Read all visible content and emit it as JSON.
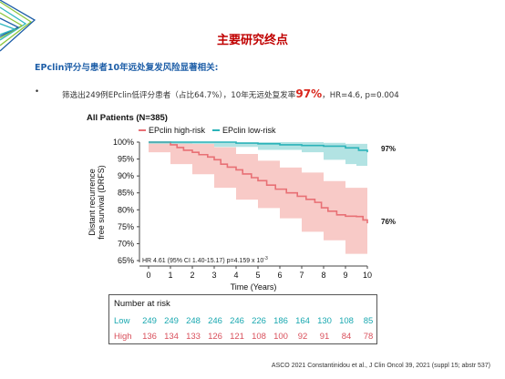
{
  "slide": {
    "title": "主要研究终点",
    "subtitle": "EPclin评分与患者10年远处复发风险显著相关:",
    "bullet": {
      "marker": "•",
      "text_pre": "筛选出249例EPclin低评分患者（占比64.7%），10年无远处复发率",
      "highlight": "97%",
      "text_post": "，HR=4.6, p=0.004"
    },
    "footer": "ASCO 2021 Constantinidou et al., J Clin Oncol 39, 2021 (suppl 15; abstr 537)"
  },
  "colors": {
    "title": "#c00000",
    "subtitle": "#1f5fa8",
    "high": "#e87075",
    "high_ci": "#f6b8b4",
    "low": "#2bb3b9",
    "low_ci": "#9fdcdc"
  },
  "chart_data": {
    "type": "line",
    "title": "All Patients (N=385)",
    "xlabel": "Time (Years)",
    "ylabel_line1": "Distant recurrence",
    "ylabel_line2": "free survival (DRFS)",
    "xlim": [
      0,
      10
    ],
    "ylim": [
      65,
      100
    ],
    "x_ticks": [
      "0",
      "1",
      "2",
      "3",
      "4",
      "5",
      "6",
      "7",
      "8",
      "9",
      "10"
    ],
    "y_ticks": [
      "65%",
      "70%",
      "75%",
      "80%",
      "85%",
      "90%",
      "95%",
      "100%"
    ],
    "legend": [
      "EPclin high-risk",
      "EPclin low-risk"
    ],
    "end_labels": {
      "low": "97%",
      "high": "76%"
    },
    "annotation": "HR 4.61 (95% CI 1.40-15.17) p=4.159 x 10",
    "annotation_exp": "-3",
    "series": [
      {
        "name": "EPclin high-risk",
        "points": [
          [
            0,
            100
          ],
          [
            0.5,
            100
          ],
          [
            1,
            99.2
          ],
          [
            1.3,
            98.4
          ],
          [
            1.6,
            97.6
          ],
          [
            2,
            97
          ],
          [
            2.3,
            96.3
          ],
          [
            2.7,
            95.6
          ],
          [
            3,
            94.8
          ],
          [
            3.3,
            93.5
          ],
          [
            3.6,
            92.6
          ],
          [
            4,
            91.8
          ],
          [
            4.3,
            90.6
          ],
          [
            4.7,
            89.5
          ],
          [
            5,
            88.6
          ],
          [
            5.4,
            87.3
          ],
          [
            5.8,
            86.1
          ],
          [
            6.3,
            85
          ],
          [
            6.8,
            84
          ],
          [
            7.2,
            83.1
          ],
          [
            7.6,
            82.2
          ],
          [
            7.9,
            80.6
          ],
          [
            8.2,
            79.6
          ],
          [
            8.6,
            78.5
          ],
          [
            9,
            78.1
          ],
          [
            9.5,
            78
          ],
          [
            9.8,
            77
          ],
          [
            10,
            76
          ]
        ],
        "ci_upper": [
          [
            0,
            100
          ],
          [
            1,
            100
          ],
          [
            2,
            99.5
          ],
          [
            3,
            98.5
          ],
          [
            4,
            96.5
          ],
          [
            5,
            94.5
          ],
          [
            6,
            92.5
          ],
          [
            7,
            91
          ],
          [
            8,
            88.5
          ],
          [
            9,
            86.5
          ],
          [
            10,
            85
          ]
        ],
        "ci_lower": [
          [
            0,
            100
          ],
          [
            1,
            97
          ],
          [
            2,
            93.5
          ],
          [
            3,
            90.5
          ],
          [
            4,
            86.5
          ],
          [
            5,
            83
          ],
          [
            6,
            80.5
          ],
          [
            7,
            77.5
          ],
          [
            8,
            73.5
          ],
          [
            9,
            71
          ],
          [
            10,
            67
          ]
        ]
      },
      {
        "name": "EPclin low-risk",
        "points": [
          [
            0,
            100
          ],
          [
            3,
            100
          ],
          [
            4,
            99.7
          ],
          [
            5,
            99.5
          ],
          [
            6,
            99.2
          ],
          [
            7,
            99
          ],
          [
            8,
            98.8
          ],
          [
            9,
            98.3
          ],
          [
            9.6,
            97.6
          ],
          [
            10,
            97
          ]
        ],
        "ci_upper": [
          [
            0,
            100
          ],
          [
            5,
            100
          ],
          [
            8,
            99.8
          ],
          [
            9,
            99.5
          ],
          [
            10,
            99.4
          ]
        ],
        "ci_lower": [
          [
            0,
            100
          ],
          [
            3,
            99.5
          ],
          [
            5,
            98.6
          ],
          [
            7,
            97.7
          ],
          [
            8,
            97
          ],
          [
            9,
            94.8
          ],
          [
            9.5,
            93.5
          ],
          [
            10,
            93
          ]
        ]
      }
    ],
    "risk_table": {
      "header": "Number at risk",
      "low_label": "Low",
      "low": [
        "249",
        "249",
        "248",
        "246",
        "246",
        "226",
        "186",
        "164",
        "130",
        "108",
        "85"
      ],
      "high_label": "High",
      "high": [
        "136",
        "134",
        "133",
        "126",
        "121",
        "108",
        "100",
        "92",
        "91",
        "84",
        "78"
      ]
    }
  }
}
